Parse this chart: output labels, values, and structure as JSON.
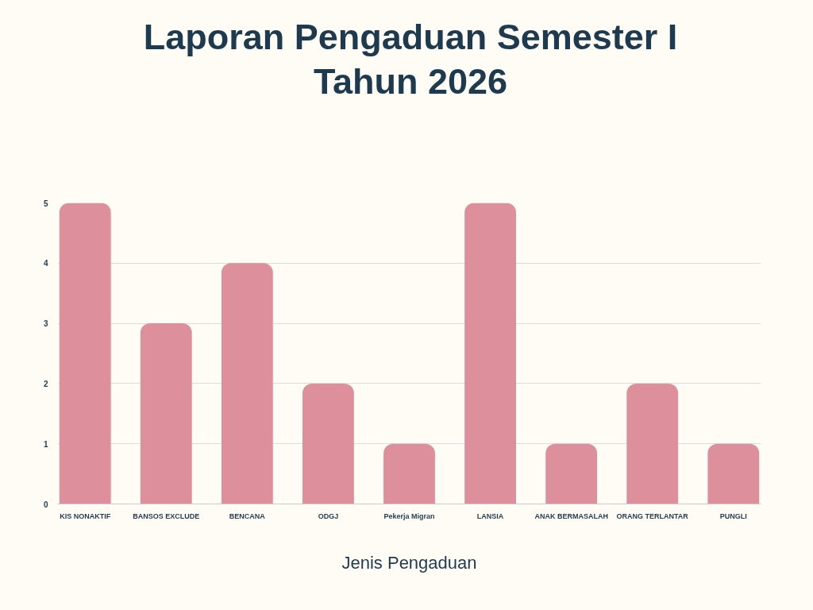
{
  "chart_data": {
    "type": "bar",
    "title": "Laporan Pengaduan Semester I Tahun 2026",
    "xlabel": "Jenis Pengaduan",
    "categories": [
      "KIS NONAKTIF",
      "BANSOS EXCLUDE",
      "BENCANA",
      "ODGJ",
      "Pekerja Migran",
      "LANSIA",
      "ANAK BERMASALAH",
      "ORANG TERLANTAR",
      "PUNGLI"
    ],
    "values": [
      5,
      3,
      4,
      2,
      1,
      5,
      1,
      2,
      1
    ],
    "color": "#de8f9c",
    "ylim": [
      0,
      5
    ],
    "yticks": [
      0,
      1,
      2,
      3,
      4,
      5
    ],
    "grid": "y"
  }
}
